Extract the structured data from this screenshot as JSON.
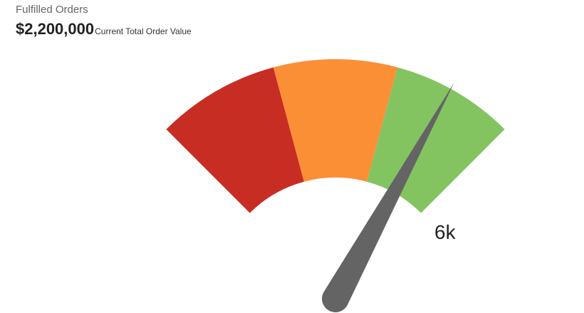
{
  "header": {
    "title": "Fulfilled Orders",
    "kpi_value": "$2,200,000",
    "kpi_caption": "Current Total Order Value"
  },
  "chart_data": {
    "type": "gauge",
    "value_label": "6k",
    "needle_fraction": 0.82,
    "bands": [
      {
        "name": "low",
        "from": 0.0,
        "to": 0.333,
        "color": "#c82d24"
      },
      {
        "name": "mid",
        "from": 0.333,
        "to": 0.667,
        "color": "#fb8f35"
      },
      {
        "name": "high",
        "from": 0.667,
        "to": 1.0,
        "color": "#83c461"
      }
    ],
    "needle_color": "#646464"
  }
}
